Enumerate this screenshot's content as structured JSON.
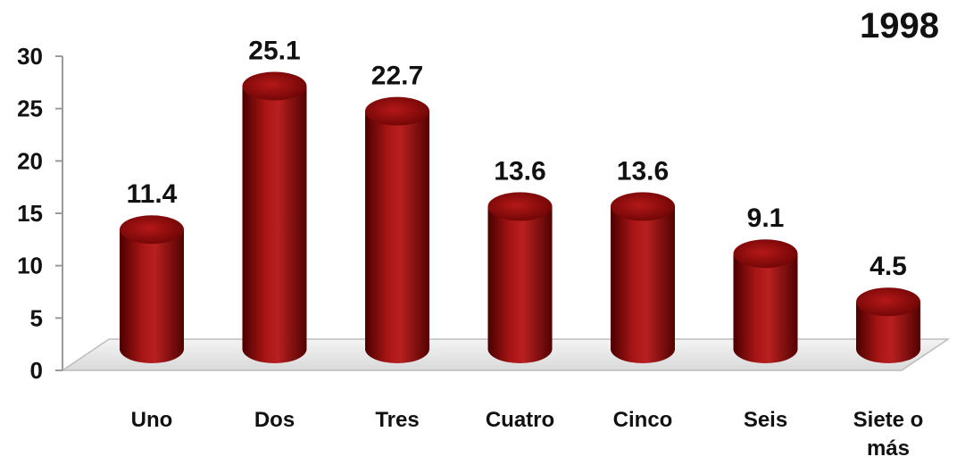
{
  "chart_data": {
    "type": "bar",
    "title": "1998",
    "categories": [
      "Uno",
      "Dos",
      "Tres",
      "Cuatro",
      "Cinco",
      "Seis",
      "Siete o más"
    ],
    "values": [
      11.4,
      25.1,
      22.7,
      13.6,
      13.6,
      9.1,
      4.5
    ],
    "data_labels": [
      "11.4",
      "25.1",
      "22.7",
      "13.6",
      "13.6",
      "9.1",
      "4.5"
    ],
    "ylim": [
      0,
      30
    ],
    "yticks": [
      0,
      5,
      10,
      15,
      20,
      25,
      30
    ],
    "xlabel": "",
    "ylabel": "",
    "grid": false,
    "legend": "none",
    "bar_style": "3d-cylinder",
    "bar_color": "#8b0a0a"
  }
}
